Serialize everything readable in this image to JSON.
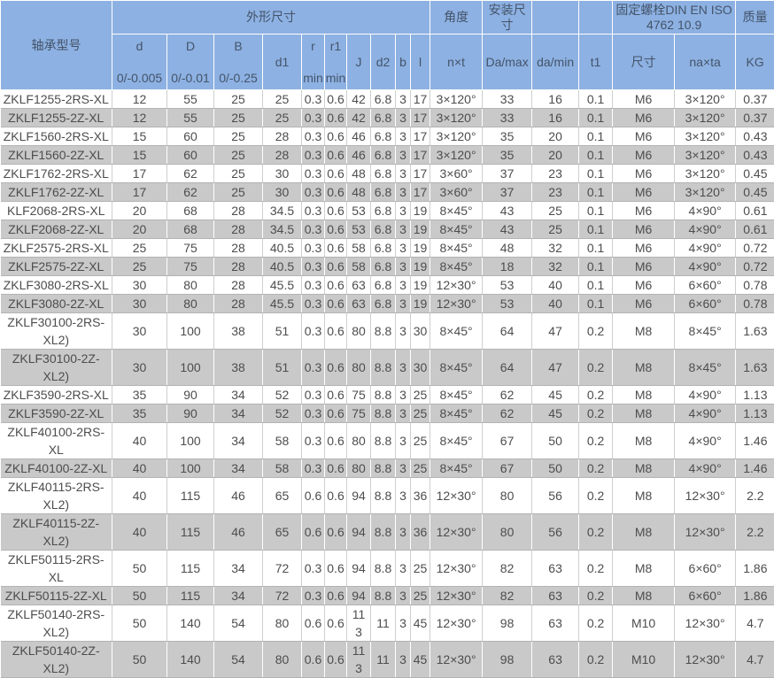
{
  "colors": {
    "header_bg": "#8db1e2",
    "header_text": "#44546a",
    "stripe_bg": "#c9c9c9",
    "cell_text": "#4d4d4d"
  },
  "table": {
    "header": {
      "model": "轴承型号",
      "groups": {
        "dimensions": "外形尺寸",
        "angle": "角度",
        "mounting": "安装尺寸",
        "bolt": "固定螺栓DIN EN ISO 4762  10.9",
        "mass": "质量"
      },
      "sub": {
        "d": "d",
        "d_tol": "0/-0.005",
        "D": "D",
        "D_tol": "0/-0.01",
        "B": "B",
        "B_tol": "0/-0.25",
        "d1": "d1",
        "r": "r",
        "r_min": "min",
        "r1": "r1",
        "r1_min": "min",
        "J": "J",
        "d2": "d2",
        "b": "b",
        "l": "l",
        "nxt": "n×t",
        "Da_max": "Da/max",
        "da_min": "da/min",
        "t1": "t1",
        "bolt_size": "尺寸",
        "naxta": "na×ta",
        "kg": "KG"
      }
    },
    "rows": [
      [
        "ZKLF1255-2RS-XL",
        "12",
        "55",
        "25",
        "25",
        "0.3",
        "0.6",
        "42",
        "6.8",
        "3",
        "17",
        "3×120°",
        "33",
        "16",
        "0.1",
        "M6",
        "3×120°",
        "0.37"
      ],
      [
        "ZKLF1255-2Z-XL",
        "12",
        "55",
        "25",
        "25",
        "0.3",
        "0.6",
        "42",
        "6.8",
        "3",
        "17",
        "3×120°",
        "33",
        "16",
        "0.1",
        "M6",
        "3×120°",
        "0.37"
      ],
      [
        "ZKLF1560-2RS-XL",
        "15",
        "60",
        "25",
        "28",
        "0.3",
        "0.6",
        "46",
        "6.8",
        "3",
        "17",
        "3×120°",
        "35",
        "20",
        "0.1",
        "M6",
        "3×120°",
        "0.43"
      ],
      [
        "ZKLF1560-2Z-XL",
        "15",
        "60",
        "25",
        "28",
        "0.3",
        "0.6",
        "46",
        "6.8",
        "3",
        "17",
        "3×120°",
        "35",
        "20",
        "0.1",
        "M6",
        "3×120°",
        "0.43"
      ],
      [
        "ZKLF1762-2RS-XL",
        "17",
        "62",
        "25",
        "30",
        "0.3",
        "0.6",
        "48",
        "6.8",
        "3",
        "17",
        "3×60°",
        "37",
        "23",
        "0.1",
        "M6",
        "3×120°",
        "0.45"
      ],
      [
        "ZKLF1762-2Z-XL",
        "17",
        "62",
        "25",
        "30",
        "0.3",
        "0.6",
        "48",
        "6.8",
        "3",
        "17",
        "3×60°",
        "37",
        "23",
        "0.1",
        "M6",
        "3×120°",
        "0.45"
      ],
      [
        "KLF2068-2RS-XL",
        "20",
        "68",
        "28",
        "34.5",
        "0.3",
        "0.6",
        "53",
        "6.8",
        "3",
        "19",
        "8×45°",
        "43",
        "25",
        "0.1",
        "M6",
        "4×90°",
        "0.61"
      ],
      [
        "ZKLF2068-2Z-XL",
        "20",
        "68",
        "28",
        "34.5",
        "0.3",
        "0.6",
        "53",
        "6.8",
        "3",
        "19",
        "8×45°",
        "43",
        "25",
        "0.1",
        "M6",
        "4×90°",
        "0.61"
      ],
      [
        "ZKLF2575-2RS-XL",
        "25",
        "75",
        "28",
        "40.5",
        "0.3",
        "0.6",
        "58",
        "6.8",
        "3",
        "19",
        "8×45°",
        "48",
        "32",
        "0.1",
        "M6",
        "4×90°",
        "0.72"
      ],
      [
        "ZKLF2575-2Z-XL",
        "25",
        "75",
        "28",
        "40.5",
        "0.3",
        "0.6",
        "58",
        "6.8",
        "3",
        "19",
        "8×45°",
        "18",
        "32",
        "0.1",
        "M6",
        "4×90°",
        "0.72"
      ],
      [
        "ZKLF3080-2RS-XL",
        "30",
        "80",
        "28",
        "45.5",
        "0.3",
        "0.6",
        "63",
        "6.8",
        "3",
        "19",
        "12×30°",
        "53",
        "40",
        "0.1",
        "M6",
        "6×60°",
        "0.78"
      ],
      [
        "ZKLF3080-2Z-XL",
        "30",
        "80",
        "28",
        "45.5",
        "0.3",
        "0.6",
        "63",
        "6.8",
        "3",
        "19",
        "12×30°",
        "53",
        "40",
        "0.1",
        "M6",
        "6×60°",
        "0.78"
      ],
      [
        "ZKLF30100-2RS-XL2)",
        "30",
        "100",
        "38",
        "51",
        "0.3",
        "0.6",
        "80",
        "8.8",
        "3",
        "30",
        "8×45°",
        "64",
        "47",
        "0.2",
        "M8",
        "8×45°",
        "1.63"
      ],
      [
        "ZKLF30100-2Z-XL2)",
        "30",
        "100",
        "38",
        "51",
        "0.3",
        "0.6",
        "80",
        "8.8",
        "3",
        "30",
        "8×45°",
        "64",
        "47",
        "0.2",
        "M8",
        "8×45°",
        "1.63"
      ],
      [
        "ZKLF3590-2RS-XL",
        "35",
        "90",
        "34",
        "52",
        "0.3",
        "0.6",
        "75",
        "8.8",
        "3",
        "25",
        "8×45°",
        "62",
        "45",
        "0.2",
        "M8",
        "4×90°",
        "1.13"
      ],
      [
        "ZKLF3590-2Z-XL",
        "35",
        "90",
        "34",
        "52",
        "0.3",
        "0.6",
        "75",
        "8.8",
        "3",
        "25",
        "8×45°",
        "62",
        "45",
        "0.2",
        "M8",
        "4×90°",
        "1.13"
      ],
      [
        "ZKLF40100-2RS-XL",
        "40",
        "100",
        "34",
        "58",
        "0.3",
        "0.6",
        "80",
        "8.8",
        "3",
        "25",
        "8×45°",
        "67",
        "50",
        "0.2",
        "M8",
        "4×90°",
        "1.46"
      ],
      [
        "ZKLF40100-2Z-XL",
        "40",
        "100",
        "34",
        "58",
        "0.3",
        "0.6",
        "80",
        "8.8",
        "3",
        "25",
        "8×45°",
        "67",
        "50",
        "0.2",
        "M8",
        "4×90°",
        "1.46"
      ],
      [
        "ZKLF40115-2RS-XL2)",
        "40",
        "115",
        "46",
        "65",
        "0.6",
        "0.6",
        "94",
        "8.8",
        "3",
        "36",
        "12×30°",
        "80",
        "56",
        "0.2",
        "M8",
        "12×30°",
        "2.2"
      ],
      [
        "ZKLF40115-2Z-XL2)",
        "40",
        "115",
        "46",
        "65",
        "0.6",
        "0.6",
        "94",
        "8.8",
        "3",
        "36",
        "12×30°",
        "80",
        "56",
        "0.2",
        "M8",
        "12×30°",
        "2.2"
      ],
      [
        "ZKLF50115-2RS-XL",
        "50",
        "115",
        "34",
        "72",
        "0.3",
        "0.6",
        "94",
        "8.8",
        "3",
        "25",
        "12×30°",
        "82",
        "63",
        "0.2",
        "M8",
        "6×60°",
        "1.86"
      ],
      [
        "ZKLF50115-2Z-XL",
        "50",
        "115",
        "34",
        "72",
        "0.3",
        "0.6",
        "94",
        "8.8",
        "3",
        "25",
        "12×30°",
        "82",
        "63",
        "0.2",
        "M8",
        "6×60°",
        "1.86"
      ],
      [
        "ZKLF50140-2RS-XL2)",
        "50",
        "140",
        "54",
        "80",
        "0.6",
        "0.6",
        "113",
        "11",
        "3",
        "45",
        "12×30°",
        "98",
        "63",
        "0.2",
        "M10",
        "12×30°",
        "4.7"
      ],
      [
        "ZKLF50140-2Z-XL2)",
        "50",
        "140",
        "54",
        "80",
        "0.6",
        "0.6",
        "113",
        "11",
        "3",
        "45",
        "12×30°",
        "98",
        "63",
        "0.2",
        "M10",
        "12×30°",
        "4.7"
      ]
    ]
  }
}
